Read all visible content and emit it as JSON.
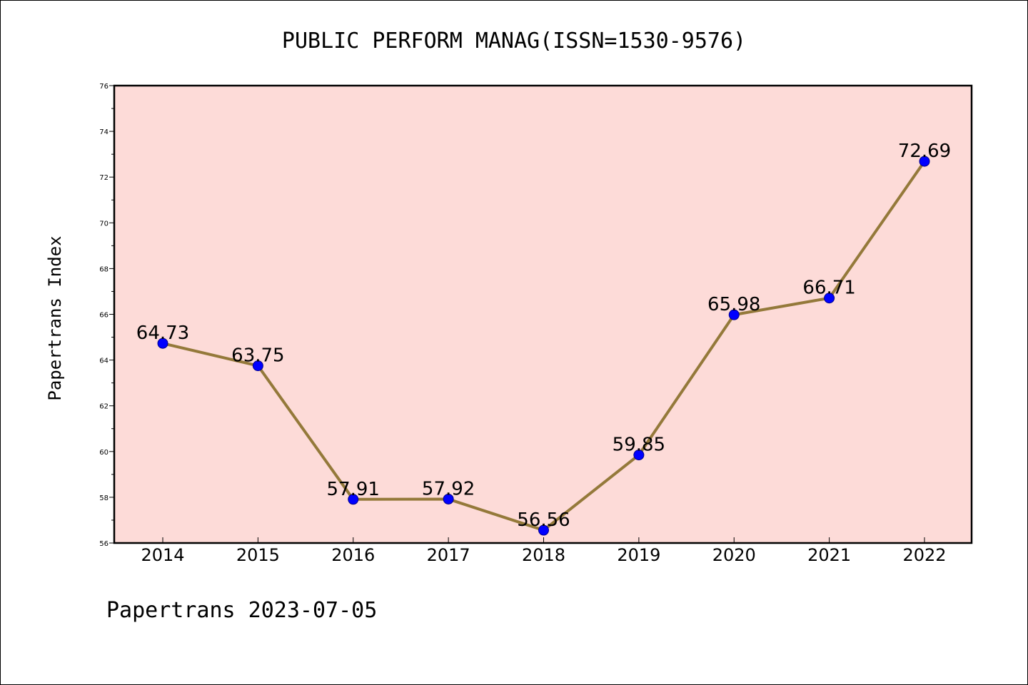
{
  "chart_data": {
    "type": "line",
    "title": "PUBLIC PERFORM MANAG(ISSN=1530-9576)",
    "ylabel": "Papertrans Index",
    "xlabel": "",
    "footer": "Papertrans 2023-07-05",
    "categories": [
      "2014",
      "2015",
      "2016",
      "2017",
      "2018",
      "2019",
      "2020",
      "2021",
      "2022"
    ],
    "series": [
      {
        "values": [
          64.73,
          63.75,
          57.91,
          57.92,
          56.56,
          59.85,
          65.98,
          66.71,
          72.69
        ],
        "labels": [
          "64.73",
          "63.75",
          "57.91",
          "57.92",
          "56.56",
          "59.85",
          "65.98",
          "66.71",
          "72.69"
        ]
      }
    ],
    "ylim": [
      56,
      76
    ],
    "yticks": [
      "56",
      "58",
      "60",
      "62",
      "64",
      "66",
      "68",
      "70",
      "72",
      "74",
      "76"
    ],
    "grid": false,
    "colors": {
      "plot_background": "#fddbd8",
      "line": "#94793a",
      "marker_fill": "#0000ff",
      "marker_edge": "#00008b",
      "frame": "#000000"
    }
  }
}
